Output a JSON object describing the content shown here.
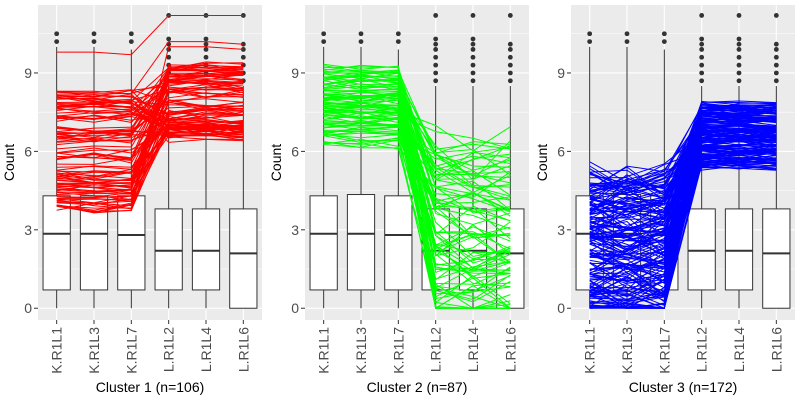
{
  "chart_data": [
    {
      "type": "box+parallel-lines",
      "xlabel": "Cluster 1 (n=106)",
      "ylabel": "Count",
      "categories": [
        "K.R1L1",
        "K.R1L3",
        "K.R1L7",
        "L.R1L2",
        "L.R1L4",
        "L.R1L6"
      ],
      "ylim": [
        -0.45,
        11.6
      ],
      "yticks": [
        0,
        3,
        6,
        9
      ],
      "grid": true,
      "line_color": "#ff0000",
      "n": 106,
      "boxes": [
        {
          "min": 0,
          "q1": 0.7,
          "median": 2.85,
          "q3": 4.3,
          "max": 10.0,
          "outliers": [
            10.2,
            10.5
          ]
        },
        {
          "min": 0,
          "q1": 0.7,
          "median": 2.85,
          "q3": 4.3,
          "max": 10.0,
          "outliers": [
            10.2,
            10.5
          ]
        },
        {
          "min": 0,
          "q1": 0.7,
          "median": 2.8,
          "q3": 4.3,
          "max": 9.9,
          "outliers": [
            10.2,
            10.5
          ]
        },
        {
          "min": 0,
          "q1": 0.7,
          "median": 2.2,
          "q3": 3.8,
          "max": 8.5,
          "outliers": [
            8.7,
            9.0,
            9.3,
            9.6,
            9.9,
            10.1,
            10.3,
            11.2
          ]
        },
        {
          "min": 0,
          "q1": 0.7,
          "median": 2.2,
          "q3": 3.8,
          "max": 8.5,
          "outliers": [
            8.7,
            9.0,
            9.3,
            9.6,
            9.9,
            10.1,
            10.3,
            11.2
          ]
        },
        {
          "min": 0,
          "q1": 0.0,
          "median": 2.1,
          "q3": 3.8,
          "max": 8.5,
          "outliers": [
            8.7,
            9.0,
            9.3,
            9.6,
            9.9,
            10.1,
            11.2
          ]
        }
      ],
      "profiles": {
        "left_range": [
          3.7,
          8.3
        ],
        "right_range": [
          6.5,
          9.3
        ],
        "extra_lines": [
          [
            9.8,
            9.8,
            9.7,
            11.2,
            11.2,
            11.2
          ],
          [
            8.3,
            8.3,
            8.2,
            10.2,
            10.2,
            10.1
          ],
          [
            4.2,
            4.2,
            4.1,
            10.0,
            10.0,
            9.9
          ]
        ]
      }
    },
    {
      "type": "box+parallel-lines",
      "xlabel": "Cluster 2 (n=87)",
      "ylabel": "Count",
      "categories": [
        "K.R1L1",
        "K.R1L3",
        "K.R1L7",
        "L.R1L2",
        "L.R1L4",
        "L.R1L6"
      ],
      "ylim": [
        -0.45,
        11.6
      ],
      "yticks": [
        0,
        3,
        6,
        9
      ],
      "grid": true,
      "line_color": "#00ff00",
      "n": 87,
      "boxes": [
        {
          "min": 0,
          "q1": 0.7,
          "median": 2.85,
          "q3": 4.3,
          "max": 10.0,
          "outliers": [
            10.2,
            10.5
          ]
        },
        {
          "min": 0,
          "q1": 0.7,
          "median": 2.85,
          "q3": 4.35,
          "max": 10.0,
          "outliers": [
            10.2,
            10.5
          ]
        },
        {
          "min": 0,
          "q1": 0.7,
          "median": 2.8,
          "q3": 4.3,
          "max": 9.9,
          "outliers": [
            10.2,
            10.5
          ]
        },
        {
          "min": 0,
          "q1": 0.7,
          "median": 2.2,
          "q3": 3.8,
          "max": 8.5,
          "outliers": [
            8.7,
            9.0,
            9.3,
            9.6,
            9.9,
            10.1,
            10.3,
            11.2
          ]
        },
        {
          "min": 0,
          "q1": 0.7,
          "median": 2.2,
          "q3": 3.8,
          "max": 8.5,
          "outliers": [
            8.7,
            9.0,
            9.3,
            9.6,
            9.9,
            10.1,
            10.3,
            11.2
          ]
        },
        {
          "min": 0,
          "q1": 0.0,
          "median": 2.1,
          "q3": 3.8,
          "max": 8.5,
          "outliers": [
            8.7,
            9.0,
            9.3,
            9.6,
            9.9,
            10.1,
            11.2
          ]
        }
      ],
      "profiles": {
        "left_range": [
          6.2,
          9.2
        ],
        "right_range": [
          0.1,
          6.4
        ],
        "extra_lines": []
      }
    },
    {
      "type": "box+parallel-lines",
      "xlabel": "Cluster 3 (n=172)",
      "ylabel": "Count",
      "categories": [
        "K.R1L1",
        "K.R1L3",
        "K.R1L7",
        "L.R1L2",
        "L.R1L4",
        "L.R1L6"
      ],
      "ylim": [
        -0.45,
        11.6
      ],
      "yticks": [
        0,
        3,
        6,
        9
      ],
      "grid": true,
      "line_color": "#0000ff",
      "n": 172,
      "boxes": [
        {
          "min": 0,
          "q1": 0.7,
          "median": 2.85,
          "q3": 4.3,
          "max": 10.0,
          "outliers": [
            10.2,
            10.5
          ]
        },
        {
          "min": 0,
          "q1": 0.7,
          "median": 2.85,
          "q3": 4.35,
          "max": 10.0,
          "outliers": [
            10.2,
            10.5
          ]
        },
        {
          "min": 0,
          "q1": 0.7,
          "median": 2.8,
          "q3": 4.3,
          "max": 9.9,
          "outliers": [
            10.2,
            10.5
          ]
        },
        {
          "min": 0,
          "q1": 0.7,
          "median": 2.2,
          "q3": 3.8,
          "max": 8.5,
          "outliers": [
            8.7,
            9.0,
            9.3,
            9.6,
            9.9,
            10.1,
            10.3,
            11.2
          ]
        },
        {
          "min": 0,
          "q1": 0.7,
          "median": 2.2,
          "q3": 3.8,
          "max": 8.5,
          "outliers": [
            8.7,
            9.0,
            9.3,
            9.6,
            9.9,
            10.1,
            10.3,
            11.2
          ]
        },
        {
          "min": 0,
          "q1": 0.0,
          "median": 2.1,
          "q3": 3.8,
          "max": 8.5,
          "outliers": [
            8.7,
            9.0,
            9.3,
            9.6,
            9.9,
            10.1,
            11.2
          ]
        }
      ],
      "profiles": {
        "left_range": [
          0.0,
          5.2
        ],
        "right_range": [
          5.4,
          7.8
        ],
        "extra_lines": []
      }
    }
  ]
}
